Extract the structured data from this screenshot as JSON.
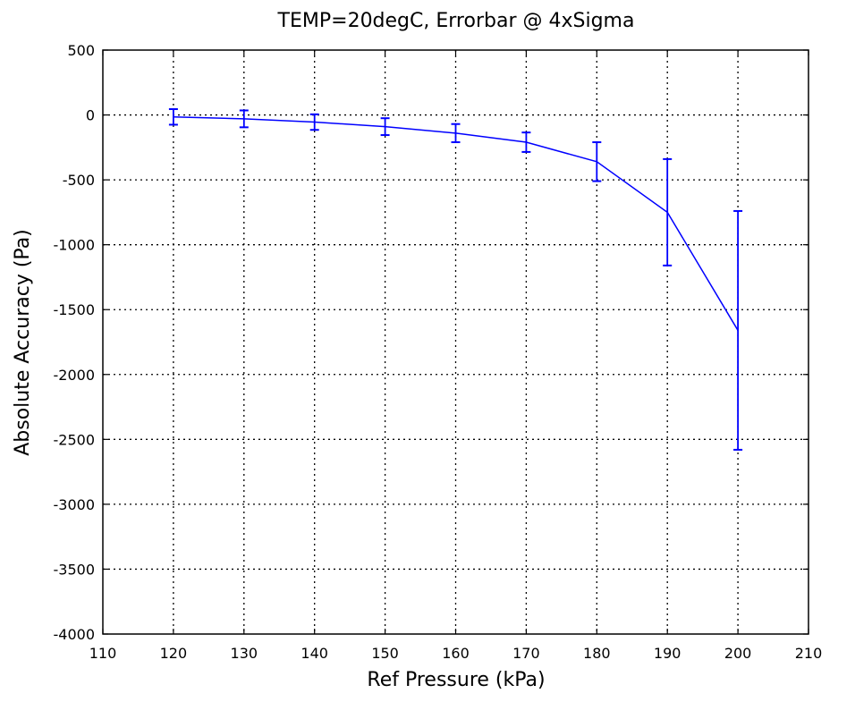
{
  "chart_data": {
    "type": "line",
    "title": "TEMP=20degC, Errorbar @ 4xSigma",
    "xlabel": "Ref Pressure (kPa)",
    "ylabel": "Absolute Accuracy (Pa)",
    "xlim": [
      110,
      210
    ],
    "ylim": [
      -4000,
      500
    ],
    "xticks": [
      110,
      120,
      130,
      140,
      150,
      160,
      170,
      180,
      190,
      200,
      210
    ],
    "yticks": [
      500,
      0,
      -500,
      -1000,
      -1500,
      -2000,
      -2500,
      -3000,
      -3500,
      -4000
    ],
    "grid": true,
    "series": [
      {
        "x": [
          120,
          130,
          140,
          150,
          160,
          170,
          180,
          190,
          200
        ],
        "y": [
          -15,
          -30,
          -55,
          -90,
          -140,
          -210,
          -360,
          -750,
          -1660
        ],
        "err": [
          60,
          65,
          60,
          65,
          70,
          75,
          150,
          410,
          920
        ],
        "color": "#0000ff"
      }
    ]
  }
}
